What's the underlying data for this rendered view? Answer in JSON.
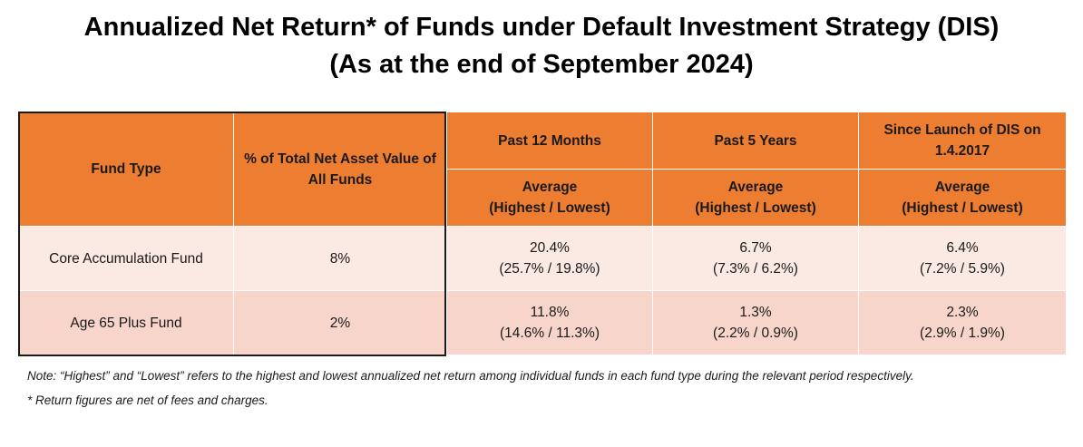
{
  "title": {
    "line1": "Annualized Net Return* of Funds under Default Investment Strategy (DIS)",
    "line2": "(As at the end of September 2024)"
  },
  "table": {
    "headers": {
      "fund_type": "Fund Type",
      "nav_share": "% of Total Net Asset Value of All Funds",
      "periods": [
        "Past 12 Months",
        "Past 5 Years",
        "Since Launch of DIS on 1.4.2017"
      ],
      "sub_line1": "Average",
      "sub_line2": "(Highest / Lowest)"
    },
    "rows": [
      {
        "fund": "Core Accumulation Fund",
        "nav": "8%",
        "cells": [
          {
            "avg": "20.4%",
            "range": "(25.7% / 19.8%)"
          },
          {
            "avg": "6.7%",
            "range": "(7.3% / 6.2%)"
          },
          {
            "avg": "6.4%",
            "range": "(7.2% / 5.9%)"
          }
        ]
      },
      {
        "fund": "Age 65 Plus Fund",
        "nav": "2%",
        "cells": [
          {
            "avg": "11.8%",
            "range": "(14.6% / 11.3%)"
          },
          {
            "avg": "1.3%",
            "range": "(2.2% / 0.9%)"
          },
          {
            "avg": "2.3%",
            "range": "(2.9% / 1.9%)"
          }
        ]
      }
    ]
  },
  "notes": {
    "note": "Note: “Highest” and “Lowest” refers to the highest and lowest annualized net return among individual funds in each fund type during the relevant period respectively.",
    "footnote": "* Return figures are net of fees and charges."
  },
  "colors": {
    "header": "#ed7d31",
    "row1": "#fbe9e4",
    "row2": "#f7d5cb"
  }
}
